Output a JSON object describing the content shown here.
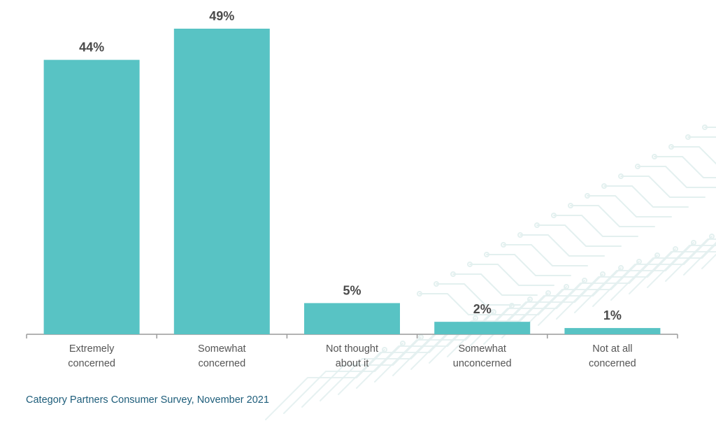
{
  "chart_data": {
    "type": "bar",
    "categories": [
      [
        "Extremely",
        "concerned"
      ],
      [
        "Somewhat",
        "concerned"
      ],
      [
        "Not thought",
        "about it"
      ],
      [
        "Somewhat",
        "unconcerned"
      ],
      [
        "Not at all",
        "concerned"
      ]
    ],
    "values": [
      44,
      49,
      5,
      2,
      1
    ],
    "value_labels": [
      "44%",
      "49%",
      "5%",
      "2%",
      "1%"
    ],
    "title": "",
    "xlabel": "",
    "ylabel": "",
    "ylim": [
      0,
      49
    ],
    "grid": false,
    "legend": "none"
  },
  "source": "Category Partners Consumer Survey, November 2021",
  "colors": {
    "bar": "#58c3c4",
    "axis": "#9a9a9a",
    "value_text": "#4a4a4a",
    "category_text": "#555555",
    "source_text": "#1d5d7a",
    "pattern": "#e3f0ef"
  }
}
